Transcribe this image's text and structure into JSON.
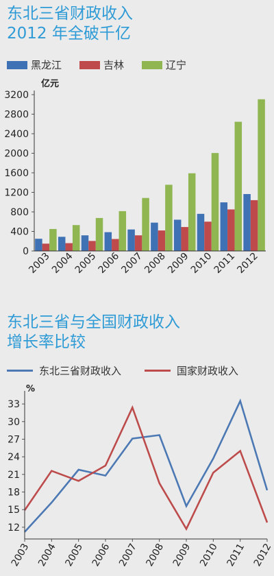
{
  "colors": {
    "heilongjiang": "#3f72b4",
    "jilin": "#bf4a4c",
    "liaoning": "#90b651",
    "northeast": "#4c79b4",
    "national": "#bd4b4b",
    "title": "#2e9bd6"
  },
  "chart_data": [
    {
      "type": "bar",
      "title_lines": [
        "东北三省财政收入",
        "2012 年全破千亿"
      ],
      "ylabel": "亿元",
      "ylim": [
        0,
        3200
      ],
      "yticks": [
        "0",
        "400",
        "800",
        "1200",
        "1600",
        "2000",
        "2400",
        "2800",
        "3200"
      ],
      "categories": [
        "2003",
        "2004",
        "2005",
        "2006",
        "2007",
        "2008",
        "2009",
        "2010",
        "2011",
        "2012"
      ],
      "legend_position": "top",
      "series": [
        {
          "name": "黑龙江",
          "values": [
            250,
            290,
            320,
            385,
            440,
            580,
            640,
            760,
            995,
            1165
          ]
        },
        {
          "name": "吉林",
          "values": [
            150,
            160,
            205,
            245,
            320,
            420,
            490,
            600,
            850,
            1040
          ]
        },
        {
          "name": "辽宁",
          "values": [
            450,
            530,
            675,
            815,
            1085,
            1355,
            1590,
            2005,
            2645,
            3105
          ]
        }
      ]
    },
    {
      "type": "line",
      "title_lines": [
        "东北三省与全国财政收入",
        "增长率比较"
      ],
      "ylabel": "%",
      "ylim": [
        10,
        35
      ],
      "yticks": [
        "12",
        "15",
        "18",
        "21",
        "24",
        "27",
        "30",
        "33"
      ],
      "categories": [
        "2003",
        "2004",
        "2005",
        "2006",
        "2007",
        "2008",
        "2009",
        "2010",
        "2011",
        "2012"
      ],
      "legend_position": "top",
      "series": [
        {
          "name": "东北三省财政收入",
          "values": [
            11.2,
            16.2,
            21.8,
            20.8,
            27.1,
            27.7,
            15.6,
            23.7,
            33.5,
            18.3
          ]
        },
        {
          "name": "国家财政收入",
          "values": [
            14.9,
            21.6,
            19.9,
            22.5,
            32.4,
            19.5,
            11.7,
            21.3,
            25.0,
            12.8
          ]
        }
      ]
    }
  ]
}
